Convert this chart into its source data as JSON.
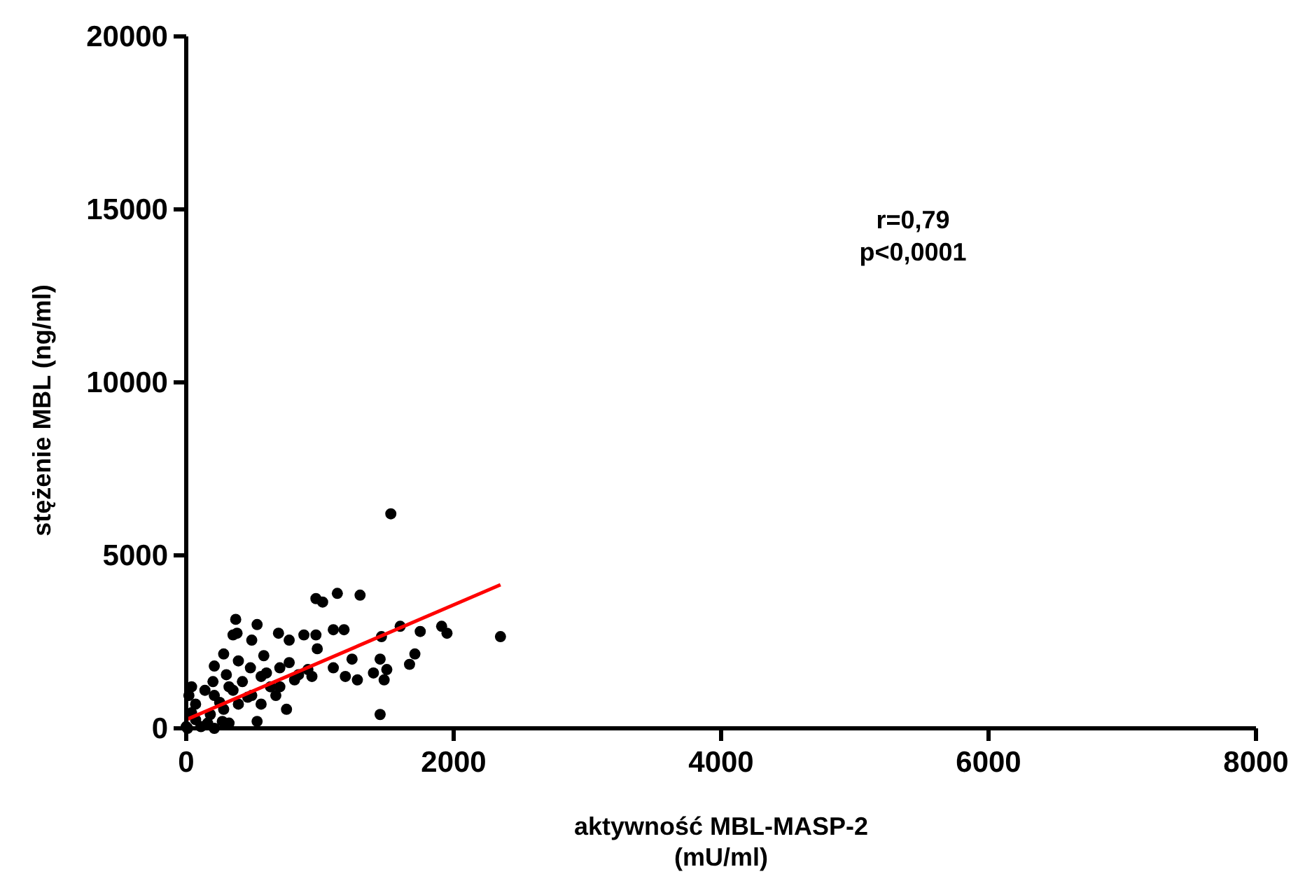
{
  "chart_data": {
    "type": "scatter",
    "xlabel": "aktywność  MBL-MASP-2\n(mU/ml)",
    "ylabel": "stężenie MBL (ng/ml)",
    "annotations": [
      "r=0,79\np<0,0001"
    ],
    "xlim": [
      0,
      8000
    ],
    "xticks": [
      0,
      2000,
      4000,
      6000,
      8000
    ],
    "ylim": [
      0,
      20000
    ],
    "yticks": [
      0,
      5000,
      10000,
      15000,
      20000
    ],
    "grid": false,
    "series": [
      {
        "color": "#000000",
        "marker": "circle",
        "x": [
          1530,
          970,
          1020,
          1130,
          1300,
          370,
          530,
          380,
          690,
          880,
          970,
          1100,
          1180,
          1600,
          1750,
          1910,
          1950,
          2350,
          1460,
          1710,
          1670,
          1450,
          1500,
          1400,
          1480,
          1450,
          1240,
          1100,
          1190,
          1280,
          980,
          940,
          750,
          530,
          810,
          700,
          580,
          390,
          280,
          210,
          490,
          350,
          770,
          40,
          20,
          140,
          70,
          210,
          320,
          420,
          560,
          630,
          490,
          390,
          280,
          180,
          0,
          110,
          210,
          320,
          70,
          40,
          250,
          460,
          670,
          700,
          840,
          910,
          770,
          600,
          480,
          300,
          200,
          350,
          560,
          160,
          270,
          10
        ],
        "values": [
          6200,
          3750,
          3650,
          3900,
          3850,
          3150,
          3000,
          2750,
          2750,
          2700,
          2700,
          2850,
          2850,
          2950,
          2800,
          2950,
          2750,
          2650,
          2650,
          2150,
          1850,
          2000,
          1700,
          1600,
          1400,
          400,
          2000,
          1750,
          1500,
          1400,
          2300,
          1500,
          550,
          200,
          1400,
          1750,
          2100,
          1950,
          2150,
          1800,
          2550,
          2700,
          2550,
          1200,
          950,
          1100,
          700,
          950,
          1200,
          1350,
          1500,
          1200,
          950,
          700,
          550,
          400,
          50,
          50,
          0,
          150,
          250,
          450,
          750,
          900,
          950,
          1200,
          1550,
          1700,
          1900,
          1600,
          1750,
          1550,
          1350,
          1100,
          700,
          150,
          200,
          0
        ]
      },
      {
        "type": "line",
        "color": "#ff0000",
        "line_style": "solid",
        "x": [
          0,
          2350
        ],
        "values": [
          250,
          4150
        ]
      }
    ]
  }
}
